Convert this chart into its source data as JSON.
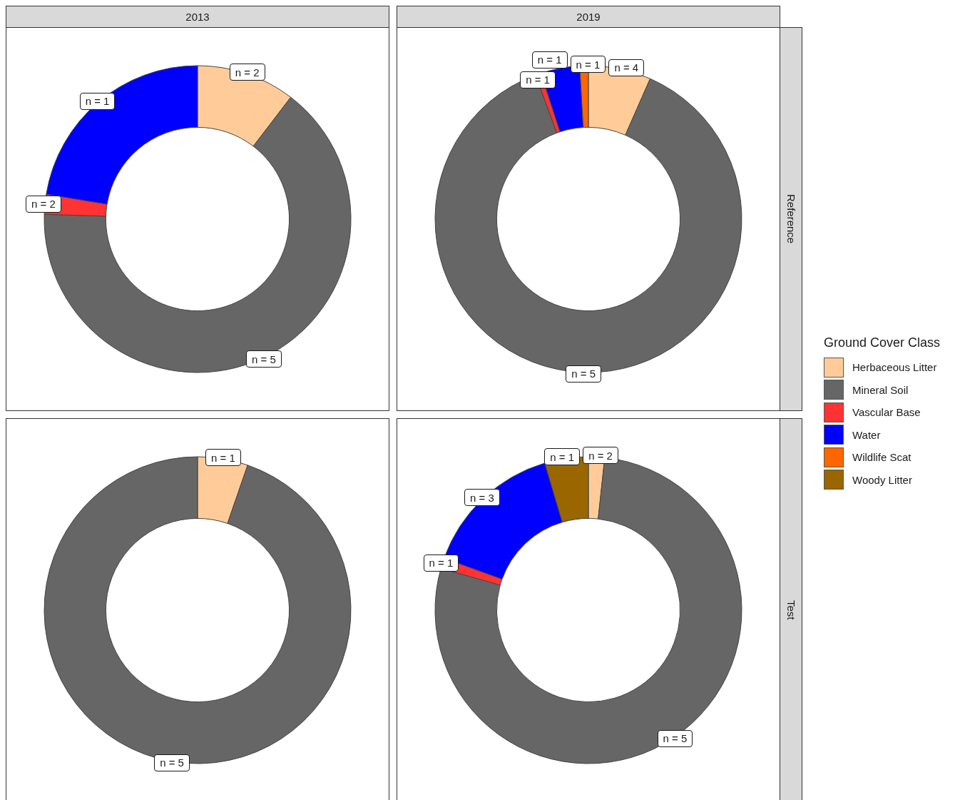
{
  "chart_data": [
    {
      "type": "donut",
      "title": "2013",
      "categories": [
        null,
        null,
        null,
        null
      ],
      "values": [
        10.4,
        65.1,
        2.1,
        22.4
      ],
      "colors": [
        "#ffcc99",
        "#666666",
        "#ff3333",
        "#0000ff"
      ],
      "annotations": [
        "n = 2",
        "n = 5",
        "n = 2",
        "n = 1"
      ]
    },
    {
      "type": "donut",
      "title": "2019",
      "ylabel": "Reference",
      "legend": "right",
      "legend_title": "Ground Cover Class",
      "categories": [
        "Herbaceous Litter",
        "Mineral Soil",
        "Vascular Base",
        "Water",
        "Wildlife Scat",
        "Woody Litter"
      ],
      "values": [
        6.6,
        87.8,
        0.6,
        4.1,
        0.9,
        0
      ],
      "colors": [
        "#ffcc99",
        "#666666",
        "#ff3333",
        "#0000ff",
        "#ff6600",
        "#996600"
      ],
      "annotations": [
        {
          "text": "n = 4",
          "x": "Herbaceous Litter"
        },
        {
          "text": "n = 5",
          "x": "Mineral Soil"
        },
        {
          "text": "n = 1",
          "x": "Vascular Base"
        },
        {
          "text": "n = 1",
          "x": "Water"
        },
        {
          "text": "n = 1",
          "x": "Wildlife Scat"
        }
      ]
    },
    {
      "type": "donut",
      "categories": [
        null,
        null
      ],
      "values": [
        5.3,
        94.7
      ],
      "colors": [
        "#ffcc99",
        "#666666"
      ],
      "annotations": [
        "n = 1",
        "n = 5"
      ]
    },
    {
      "type": "donut",
      "ylabel": "Test",
      "categories": [
        null,
        null,
        null,
        null,
        null
      ],
      "values": [
        1.7,
        77.7,
        1.1,
        14.9,
        4.6
      ],
      "colors": [
        "#ffcc99",
        "#666666",
        "#ff3333",
        "#0000ff",
        "#996600"
      ],
      "annotations": [
        "n = 2",
        "n = 5",
        "n = 1",
        "n = 3",
        "n = 1"
      ]
    }
  ]
}
